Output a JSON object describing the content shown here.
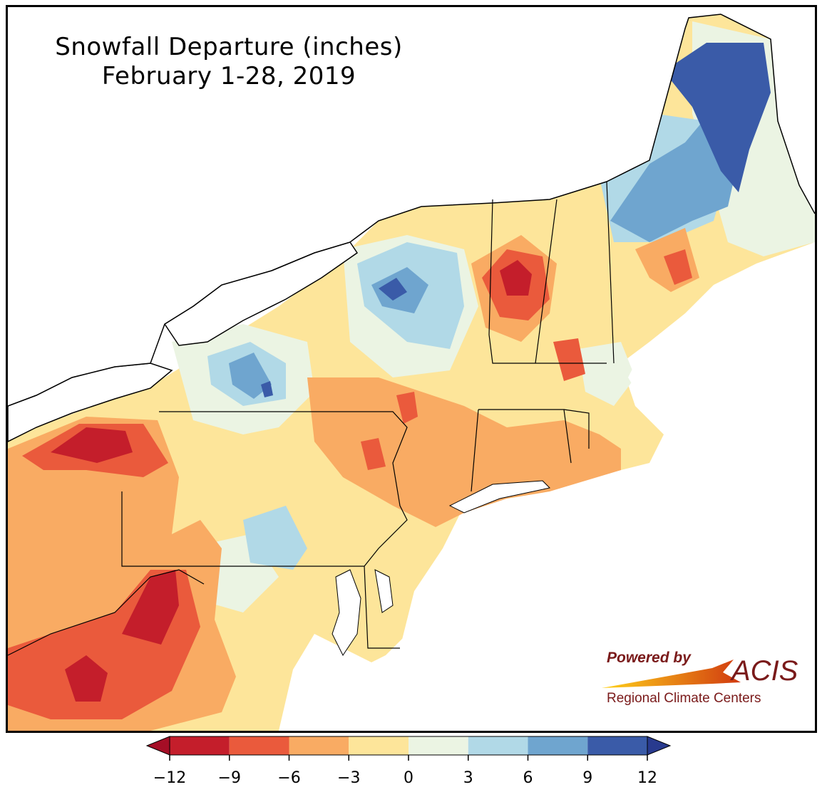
{
  "title": {
    "line1": "Snowfall Departure (inches)",
    "line2": "February 1-28, 2019"
  },
  "logo": {
    "powered_by": "Powered by",
    "brand": "ACIS",
    "subtitle": "Regional Climate Centers"
  },
  "legend": {
    "ticks": [
      "−12",
      "−9",
      "−6",
      "−3",
      "0",
      "3",
      "6",
      "9",
      "12"
    ],
    "tick_values": [
      -12,
      -9,
      -6,
      -3,
      0,
      3,
      6,
      9,
      12
    ],
    "bins": [
      {
        "range": [
          -12,
          -9
        ],
        "color": "#c41e2b"
      },
      {
        "range": [
          -9,
          -6
        ],
        "color": "#ea5a3c"
      },
      {
        "range": [
          -6,
          -3
        ],
        "color": "#f9ab63"
      },
      {
        "range": [
          -3,
          0
        ],
        "color": "#fde59a"
      },
      {
        "range": [
          0,
          3
        ],
        "color": "#ebf4e3"
      },
      {
        "range": [
          3,
          6
        ],
        "color": "#b1d9e7"
      },
      {
        "range": [
          6,
          9
        ],
        "color": "#6fa5cf"
      },
      {
        "range": [
          9,
          12
        ],
        "color": "#3a5ba8"
      }
    ],
    "under_color": "#a50e26",
    "over_color": "#283a8e"
  }
}
